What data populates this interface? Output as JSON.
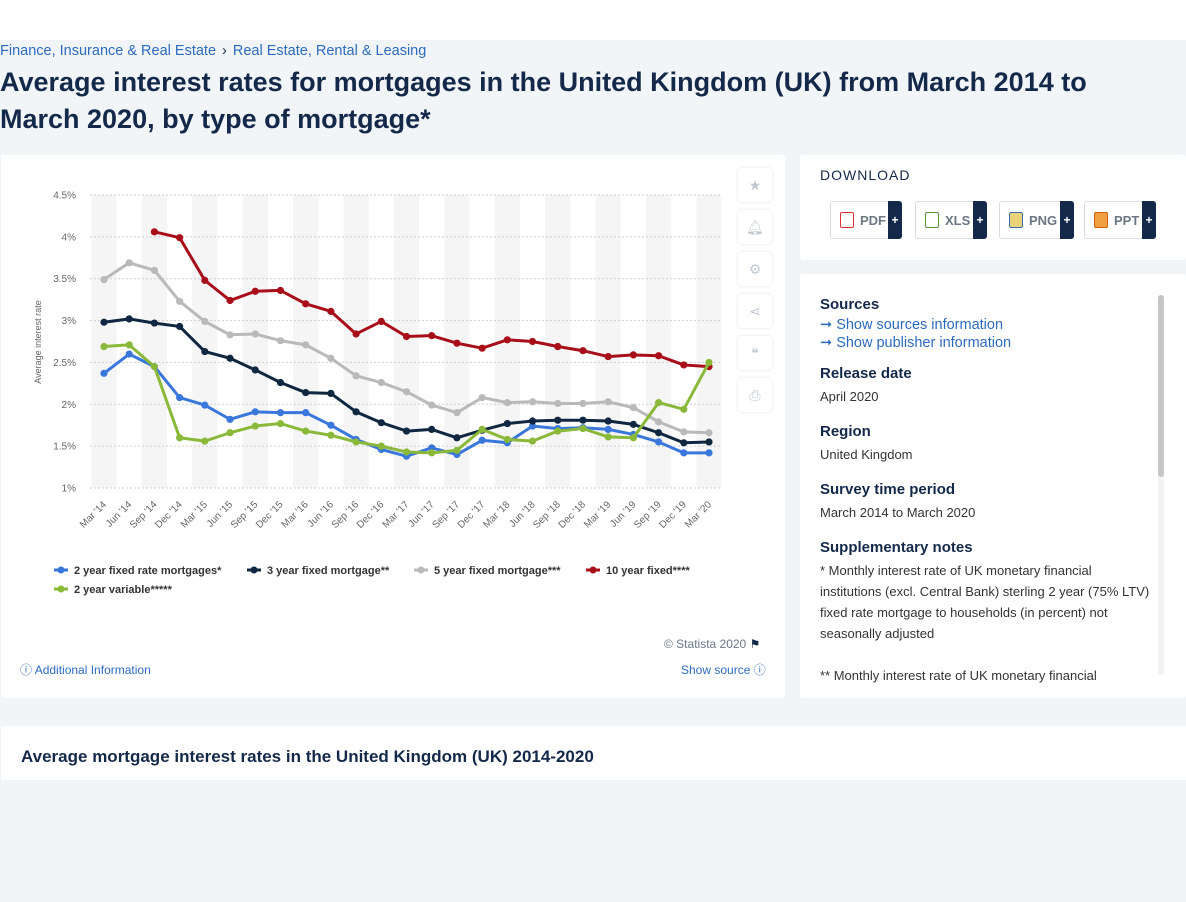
{
  "breadcrumb": {
    "item1": "Finance, Insurance & Real Estate",
    "sep": "›",
    "item2": "Real Estate, Rental & Leasing"
  },
  "title": "Average interest rates for mortgages in the United Kingdom (UK) from March 2014 to March 2020, by type of mortgage*",
  "download": {
    "heading": "DOWNLOAD",
    "buttons": [
      "PDF",
      "XLS",
      "PNG",
      "PPT"
    ],
    "plus": "+"
  },
  "info": {
    "sources_heading": "Sources",
    "show_sources": "Show sources information",
    "show_publisher": "Show publisher information",
    "release_heading": "Release date",
    "release_value": "April 2020",
    "region_heading": "Region",
    "region_value": "United Kingdom",
    "survey_heading": "Survey time period",
    "survey_value": "March 2014 to March 2020",
    "notes_heading": "Supplementary notes",
    "notes_value": "* Monthly interest rate of UK monetary financial institutions (excl. Central Bank) sterling 2 year (75% LTV) fixed rate mortgage to households (in percent) not seasonally adjusted",
    "notes_value2": "** Monthly interest rate of UK monetary financial"
  },
  "chart_footer": {
    "additional": "Additional Information",
    "show_source": "Show source",
    "copyright": "© Statista 2020"
  },
  "bottom_title": "Average mortgage interest rates in the United Kingdom (UK) 2014-2020",
  "colors": {
    "s1": "#3a77dc",
    "s2": "#0f2740",
    "s3": "#b9b9b9",
    "s4": "#a80e19",
    "s5": "#8ab93a"
  },
  "chart_data": {
    "type": "line",
    "ylabel": "Average interest rate",
    "ylim": [
      1,
      4.5
    ],
    "yticks": [
      "1%",
      "1.5%",
      "2%",
      "2.5%",
      "3%",
      "3.5%",
      "4%",
      "4.5%"
    ],
    "categories": [
      "Mar '14",
      "Jun '14",
      "Sep '14",
      "Dec '14",
      "Mar '15",
      "Jun '15",
      "Sep '15",
      "Dec '15",
      "Mar '16",
      "Jun '16",
      "Sep '16",
      "Dec '16",
      "Mar '17",
      "Jun '17",
      "Sep '17",
      "Dec '17",
      "Mar '18",
      "Jun '18",
      "Sep '18",
      "Dec '18",
      "Mar '19",
      "Jun '19",
      "Sep '19",
      "Dec '19",
      "Mar '20"
    ],
    "grid": true,
    "legend": "bottom",
    "series": [
      {
        "name": "2 year fixed rate mortgages*",
        "values": [
          2.37,
          2.6,
          2.45,
          2.08,
          1.99,
          1.82,
          1.91,
          1.9,
          1.9,
          1.75,
          1.58,
          1.46,
          1.38,
          1.48,
          1.4,
          1.57,
          1.54,
          1.74,
          1.71,
          1.72,
          1.7,
          1.64,
          1.55,
          1.42,
          1.42
        ]
      },
      {
        "name": "3 year fixed mortgage**",
        "values": [
          2.98,
          3.02,
          2.97,
          2.93,
          2.63,
          2.55,
          2.41,
          2.26,
          2.14,
          2.13,
          1.91,
          1.78,
          1.68,
          1.7,
          1.6,
          1.69,
          1.77,
          1.8,
          1.81,
          1.81,
          1.8,
          1.76,
          1.66,
          1.54,
          1.55
        ]
      },
      {
        "name": "5 year fixed mortgage***",
        "values": [
          3.49,
          3.69,
          3.6,
          3.23,
          2.99,
          2.83,
          2.84,
          2.76,
          2.71,
          2.55,
          2.34,
          2.26,
          2.15,
          1.99,
          1.9,
          2.08,
          2.02,
          2.03,
          2.01,
          2.01,
          2.03,
          1.96,
          1.79,
          1.67,
          1.66
        ]
      },
      {
        "name": "10 year fixed****",
        "values": [
          null,
          null,
          4.06,
          3.99,
          3.48,
          3.24,
          3.35,
          3.36,
          3.2,
          3.11,
          2.84,
          2.99,
          2.81,
          2.82,
          2.73,
          2.67,
          2.77,
          2.75,
          2.69,
          2.64,
          2.57,
          2.59,
          2.58,
          2.47,
          2.45
        ]
      },
      {
        "name": "2 year variable*****",
        "values": [
          2.69,
          2.71,
          2.45,
          1.6,
          1.56,
          1.66,
          1.74,
          1.77,
          1.68,
          1.63,
          1.55,
          1.5,
          1.43,
          1.42,
          1.45,
          1.7,
          1.58,
          1.56,
          1.68,
          1.71,
          1.61,
          1.6,
          2.02,
          1.94,
          2.5
        ]
      }
    ]
  }
}
